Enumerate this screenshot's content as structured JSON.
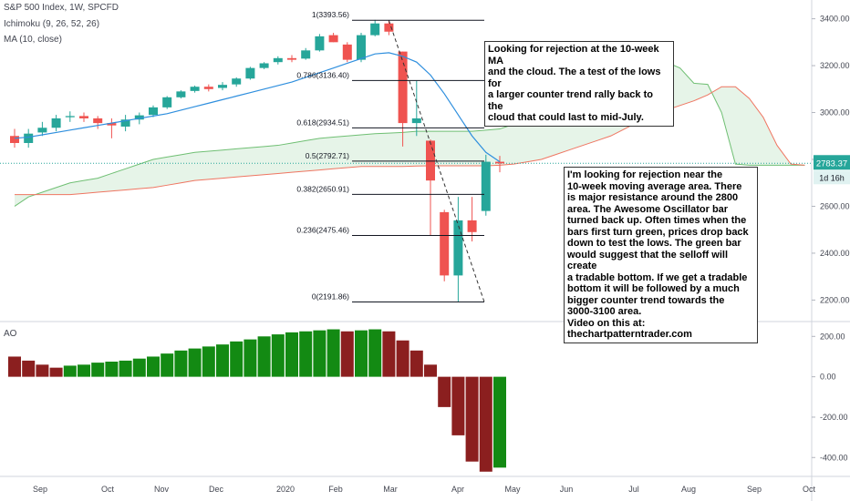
{
  "header": {
    "symbol_line": "S&P 500 Index, 1W, SPCFD",
    "indicator_1": "Ichimoku (9, 26, 52, 26)",
    "indicator_2": "MA (10, close)",
    "ao_label": "AO"
  },
  "price_badge": {
    "value": "2783.37",
    "countdown": "1d 16h"
  },
  "annotations": {
    "note_top": "Looking for rejection at the 10-week MA\n and the cloud. The a test of the lows for\n a larger counter trend rally back to the\n cloud that could last to mid-July.",
    "note_right": "I'm looking for rejection near the\n10-week moving average area. There\n is major resistance around the 2800\n area. The Awesome Oscillator bar\nturned back up. Often times when the\n bars first turn green, prices drop back\n down to test the lows. The green bar\nwould suggest that the selloff will create\n a tradable bottom. If we get a tradable\n bottom it will be followed by a much\nbigger counter trend towards the\n 3000-3100 area.\nVideo on this at:\nthechartpatterntrader.com"
  },
  "colors": {
    "up": "#26a69a",
    "down": "#ef5350",
    "ma": "#2f8fde",
    "cloud_fill": "#e6f4e8",
    "span_a": "#6fbf73",
    "span_b": "#ef7561",
    "ao_up": "#138a13",
    "ao_down": "#8b1f1f"
  },
  "chart_data": [
    {
      "type": "candlestick",
      "title": "S&P 500 Index, 1W, SPCFD",
      "x_ticks": [
        "Sep",
        "Oct",
        "Nov",
        "Dec",
        "2020",
        "Feb",
        "Mar",
        "Apr",
        "May",
        "Jun",
        "Jul",
        "Aug",
        "Sep",
        "Oct"
      ],
      "y_ticks": [
        "3400.00",
        "3200.00",
        "3000.00",
        "2800.00",
        "2600.00",
        "2400.00",
        "2200.00"
      ],
      "ylim": [
        2120,
        3480
      ],
      "candles": [
        {
          "o": 2900,
          "h": 2930,
          "l": 2850,
          "c": 2870
        },
        {
          "o": 2870,
          "h": 2930,
          "l": 2850,
          "c": 2910
        },
        {
          "o": 2915,
          "h": 2960,
          "l": 2900,
          "c": 2935
        },
        {
          "o": 2935,
          "h": 2990,
          "l": 2920,
          "c": 2975
        },
        {
          "o": 2980,
          "h": 3005,
          "l": 2960,
          "c": 2985
        },
        {
          "o": 2985,
          "h": 3000,
          "l": 2960,
          "c": 2975
        },
        {
          "o": 2975,
          "h": 2985,
          "l": 2930,
          "c": 2955
        },
        {
          "o": 2955,
          "h": 2975,
          "l": 2890,
          "c": 2945
        },
        {
          "o": 2940,
          "h": 2990,
          "l": 2920,
          "c": 2970
        },
        {
          "o": 2970,
          "h": 3000,
          "l": 2950,
          "c": 2988
        },
        {
          "o": 2990,
          "h": 3030,
          "l": 2980,
          "c": 3022
        },
        {
          "o": 3022,
          "h": 3070,
          "l": 3015,
          "c": 3065
        },
        {
          "o": 3065,
          "h": 3095,
          "l": 3060,
          "c": 3090
        },
        {
          "o": 3092,
          "h": 3115,
          "l": 3085,
          "c": 3110
        },
        {
          "o": 3110,
          "h": 3120,
          "l": 3090,
          "c": 3100
        },
        {
          "o": 3105,
          "h": 3130,
          "l": 3095,
          "c": 3118
        },
        {
          "o": 3120,
          "h": 3150,
          "l": 3110,
          "c": 3145
        },
        {
          "o": 3145,
          "h": 3195,
          "l": 3140,
          "c": 3190
        },
        {
          "o": 3190,
          "h": 3215,
          "l": 3185,
          "c": 3210
        },
        {
          "o": 3215,
          "h": 3240,
          "l": 3205,
          "c": 3232
        },
        {
          "o": 3232,
          "h": 3245,
          "l": 3215,
          "c": 3225
        },
        {
          "o": 3230,
          "h": 3275,
          "l": 3225,
          "c": 3265
        },
        {
          "o": 3265,
          "h": 3335,
          "l": 3260,
          "c": 3325
        },
        {
          "o": 3330,
          "h": 3340,
          "l": 3300,
          "c": 3300
        },
        {
          "o": 3290,
          "h": 3300,
          "l": 3215,
          "c": 3225
        },
        {
          "o": 3225,
          "h": 3340,
          "l": 3215,
          "c": 3330
        },
        {
          "o": 3330,
          "h": 3395,
          "l": 3325,
          "c": 3380
        },
        {
          "o": 3380,
          "h": 3393,
          "l": 3330,
          "c": 3345
        },
        {
          "o": 3260,
          "h": 3260,
          "l": 2855,
          "c": 2955
        },
        {
          "o": 2955,
          "h": 3135,
          "l": 2900,
          "c": 2975
        },
        {
          "o": 2880,
          "h": 2885,
          "l": 2475,
          "c": 2710
        },
        {
          "o": 2575,
          "h": 2585,
          "l": 2280,
          "c": 2305
        },
        {
          "o": 2305,
          "h": 2640,
          "l": 2192,
          "c": 2540
        },
        {
          "o": 2540,
          "h": 2640,
          "l": 2450,
          "c": 2490
        },
        {
          "o": 2580,
          "h": 2820,
          "l": 2560,
          "c": 2790
        },
        {
          "o": 2790,
          "h": 2815,
          "l": 2745,
          "c": 2783
        }
      ],
      "ma10": [
        2890,
        2895,
        2905,
        2915,
        2925,
        2935,
        2945,
        2955,
        2965,
        2975,
        2985,
        2995,
        3010,
        3025,
        3040,
        3055,
        3070,
        3085,
        3100,
        3115,
        3130,
        3150,
        3170,
        3190,
        3210,
        3230,
        3250,
        3255,
        3240,
        3215,
        3160,
        3080,
        2990,
        2900,
        2830,
        2790
      ]
    },
    {
      "type": "bar",
      "title": "AO",
      "y_ticks": [
        "200.00",
        "0.00",
        "-200.00",
        "-400.00"
      ],
      "ylim": [
        -480,
        260
      ],
      "values": [
        100,
        80,
        60,
        45,
        55,
        60,
        70,
        75,
        80,
        90,
        100,
        115,
        130,
        140,
        150,
        160,
        175,
        185,
        200,
        210,
        220,
        225,
        230,
        235,
        225,
        230,
        235,
        225,
        180,
        130,
        60,
        -150,
        -290,
        -420,
        -470,
        -450
      ],
      "colors": [
        "down",
        "down",
        "down",
        "down",
        "up",
        "up",
        "up",
        "up",
        "up",
        "up",
        "up",
        "up",
        "up",
        "up",
        "up",
        "up",
        "up",
        "up",
        "up",
        "up",
        "up",
        "up",
        "up",
        "up",
        "down",
        "up",
        "up",
        "down",
        "down",
        "down",
        "down",
        "down",
        "down",
        "down",
        "down",
        "up"
      ]
    }
  ],
  "fib_levels": [
    {
      "label": "1(3393.56)",
      "price": 3393.56
    },
    {
      "label": "0.786(3136.40)",
      "price": 3136.4
    },
    {
      "label": "0.618(2934.51)",
      "price": 2934.51
    },
    {
      "label": "0.5(2792.71)",
      "price": 2792.71
    },
    {
      "label": "0.382(2650.91)",
      "price": 2650.91
    },
    {
      "label": "0.236(2475.46)",
      "price": 2475.46
    },
    {
      "label": "0(2191.86)",
      "price": 2191.86
    }
  ],
  "cloud": {
    "span_a": [
      2600,
      2640,
      2660,
      2680,
      2700,
      2710,
      2720,
      2740,
      2760,
      2780,
      2800,
      2810,
      2820,
      2830,
      2835,
      2840,
      2845,
      2850,
      2855,
      2860,
      2870,
      2880,
      2890,
      2895,
      2900,
      2905,
      2910,
      2912,
      2915,
      2920,
      2920,
      2920,
      2920,
      2920,
      2925,
      2930,
      2950,
      2970,
      2990,
      3000,
      3010,
      3040,
      3070,
      3100,
      3140,
      3180,
      3200,
      3215,
      3190,
      3125,
      3120,
      3000,
      2780,
      2775,
      2775,
      2775,
      2775,
      2775
    ],
    "span_b": [
      2650,
      2650,
      2650,
      2650,
      2650,
      2655,
      2660,
      2665,
      2670,
      2675,
      2680,
      2690,
      2700,
      2710,
      2715,
      2720,
      2725,
      2730,
      2735,
      2740,
      2745,
      2750,
      2755,
      2760,
      2765,
      2770,
      2770,
      2770,
      2770,
      2772,
      2773,
      2773,
      2773,
      2773,
      2773,
      2775,
      2780,
      2790,
      2800,
      2820,
      2840,
      2860,
      2880,
      2900,
      2930,
      2960,
      2990,
      3010,
      3030,
      3050,
      3075,
      3110,
      3110,
      3060,
      2980,
      2860,
      2780,
      2775
    ]
  }
}
